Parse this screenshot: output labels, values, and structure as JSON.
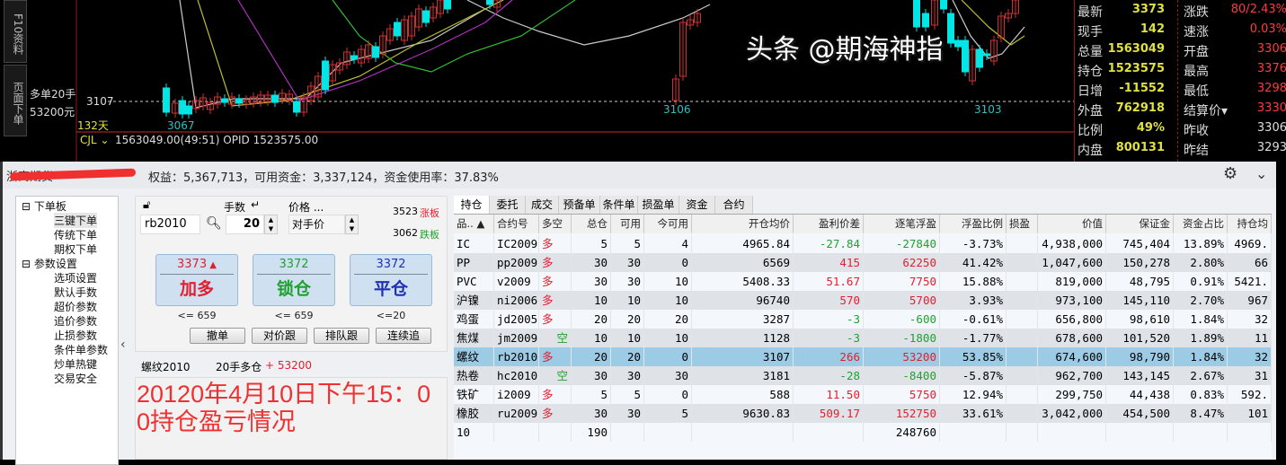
{
  "side_tabs": [
    "F10资料",
    "页面下单"
  ],
  "chart": {
    "pos_label": "多单20手",
    "pos_profit": "53200元",
    "open_price": "3107",
    "days": "132天",
    "low1": "3067",
    "low2": "3106",
    "low3": "3103",
    "ind_name": "CJL",
    "ind_text": "1563049.00(49:51)  OPID 1523575.00"
  },
  "quote": {
    "rows": [
      {
        "l": "最新",
        "v": "3373",
        "l2": "涨跌",
        "v2": "80/2.43%"
      },
      {
        "l": "现手",
        "v": "142",
        "l2": "速涨",
        "v2": "0.03%"
      },
      {
        "l": "总量",
        "v": "1563049",
        "l2": "开盘",
        "v2": "3306"
      },
      {
        "l": "持仓",
        "v": "1523575",
        "l2": "最高",
        "v2": "3376"
      },
      {
        "l": "日增",
        "v": "-11552",
        "l2": "最低",
        "v2": "3298"
      },
      {
        "l": "外盘",
        "v": "762918",
        "l2": "结算价▾",
        "v2": "3330"
      },
      {
        "l": "比例",
        "v": "49%",
        "l2": "昨收",
        "v2": "3306"
      },
      {
        "l": "内盘",
        "v": "800131",
        "l2": "昨结",
        "v2": "3293"
      }
    ]
  },
  "account": {
    "broker": "浙商期货",
    "summary": "权益：5,367,713，可用资金：3,337,124，资金使用率：37.83%"
  },
  "tree": {
    "g1": "下单板",
    "g1items": [
      "三键下单",
      "传统下单",
      "期权下单"
    ],
    "g2": "参数设置",
    "g2items": [
      "选项设置",
      "默认手数",
      "超价参数",
      "追价参数",
      "止损参数",
      "条件单参数",
      "炒单热键",
      "交易安全"
    ]
  },
  "order": {
    "qty_label": "手数",
    "price_label": "价格 ...",
    "symbol": "rb2010",
    "qty": "20",
    "price_type": "对手价",
    "limit_up": "3523",
    "limit_up_label": "涨板",
    "limit_down": "3062",
    "limit_down_label": "跌板",
    "buttons": [
      {
        "price": "3373",
        "action": "加多",
        "limit": "<= 659",
        "color": "#e02030"
      },
      {
        "price": "3372",
        "action": "锁仓",
        "limit": "<= 659",
        "color": "#20a030"
      },
      {
        "price": "3372",
        "action": "平仓",
        "limit": "<=20",
        "color": "#2030b0"
      }
    ],
    "small_buttons": [
      "撤单",
      "对价跟",
      "排队跟",
      "连续追"
    ],
    "info_name": "螺纹2010",
    "info_pos": "20手多仓",
    "info_profit": "+ 53200"
  },
  "tabs": [
    "持仓",
    "委托",
    "成交",
    "预备单",
    "条件单",
    "损盈单",
    "资金",
    "合约"
  ],
  "columns": [
    "品.. ▲",
    "合约号",
    "多空",
    "总仓",
    "可用",
    "今可用",
    "开仓均价",
    "盈利价差",
    "逐笔浮盈",
    "浮盈比例",
    "损盈",
    "价值",
    "保证金",
    "资金占比",
    "持仓均"
  ],
  "rows": [
    [
      "IC",
      "IC2009",
      "多",
      "5",
      "5",
      "4",
      "4965.84",
      "-27.84",
      "-27840",
      "-3.73%",
      "",
      "4,938,000",
      "745,404",
      "13.89%",
      "4969."
    ],
    [
      "PP",
      "pp2009",
      "多",
      "30",
      "30",
      "0",
      "6569",
      "415",
      "62250",
      "41.42%",
      "",
      "1,047,600",
      "150,278",
      "2.80%",
      "66"
    ],
    [
      "PVC",
      "v2009",
      "多",
      "30",
      "30",
      "10",
      "5408.33",
      "51.67",
      "7750",
      "15.88%",
      "",
      "819,000",
      "48,795",
      "0.91%",
      "5421."
    ],
    [
      "沪镍",
      "ni2006",
      "多",
      "10",
      "10",
      "10",
      "96740",
      "570",
      "5700",
      "3.93%",
      "",
      "973,100",
      "145,110",
      "2.70%",
      "967"
    ],
    [
      "鸡蛋",
      "jd2005",
      "多",
      "20",
      "20",
      "20",
      "3287",
      "-3",
      "-600",
      "-0.61%",
      "",
      "656,800",
      "98,610",
      "1.84%",
      "32"
    ],
    [
      "焦煤",
      "jm2009",
      "空",
      "10",
      "10",
      "10",
      "1128",
      "-3",
      "-1800",
      "-1.77%",
      "",
      "678,600",
      "101,520",
      "1.89%",
      "11"
    ],
    [
      "螺纹",
      "rb2010",
      "多",
      "20",
      "20",
      "0",
      "3107",
      "266",
      "53200",
      "53.85%",
      "",
      "674,600",
      "98,790",
      "1.84%",
      "32"
    ],
    [
      "热卷",
      "hc2010",
      "空",
      "30",
      "30",
      "30",
      "3181",
      "-28",
      "-8400",
      "-5.87%",
      "",
      "962,700",
      "143,145",
      "2.67%",
      "31"
    ],
    [
      "铁矿",
      "i2009",
      "多",
      "5",
      "5",
      "0",
      "588",
      "11.50",
      "5750",
      "12.94%",
      "",
      "299,750",
      "44,438",
      "0.83%",
      "592."
    ],
    [
      "橡胶",
      "ru2009",
      "多",
      "30",
      "30",
      "5",
      "9630.83",
      "509.17",
      "152750",
      "33.61%",
      "",
      "3,042,000",
      "454,500",
      "8.47%",
      "101"
    ]
  ],
  "total_row": [
    "10",
    "",
    "",
    "190",
    "",
    "",
    "",
    "",
    "248760",
    "",
    "",
    "",
    "",
    "",
    ""
  ],
  "selected_row": 6,
  "caption": "20120年4月10日下午15：00持仓盈亏情况",
  "watermark": "头条 @期海神指",
  "colors": {
    "up": "#e02030",
    "down": "#20a030",
    "candle_up": "#d03030",
    "candle_down": "#00e5e5",
    "selected": "#9ccbe6"
  }
}
